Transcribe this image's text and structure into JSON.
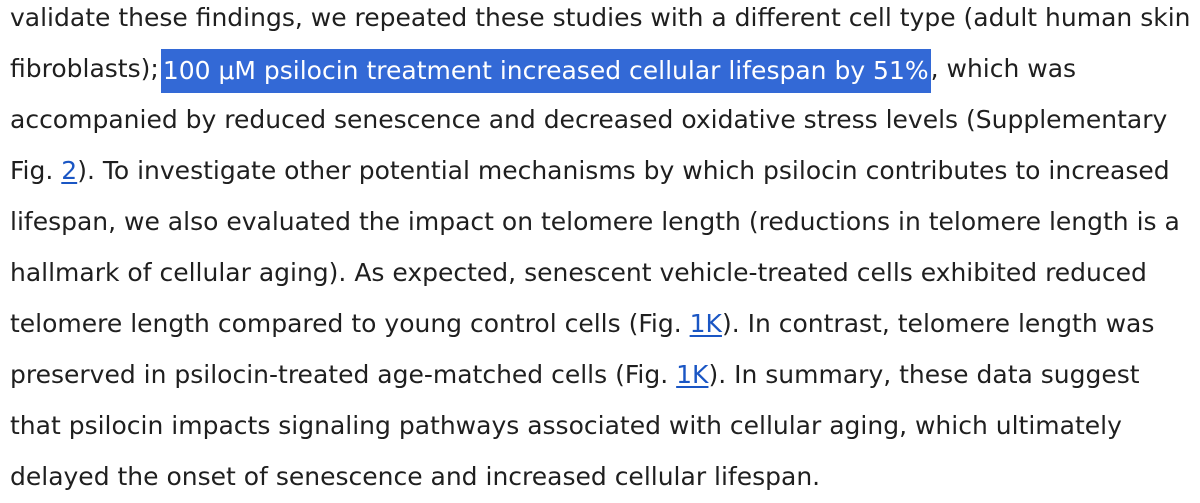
{
  "paragraph": {
    "line0": "validate these findings, we repeated these studies with a different cell type (adult human skin",
    "line1_before": "fibroblasts);",
    "line1_selected": "100 μM psilocin treatment increased cellular lifespan by 51%",
    "line1_after": ", which was",
    "line2": "accompanied by reduced senescence and decreased oxidative stress levels (Supplementary",
    "line3_before": "Fig. ",
    "line3_link": "2",
    "line3_after": "). To investigate other potential mechanisms by which psilocin contributes to increased",
    "line4": "lifespan, we also evaluated the impact on telomere length (reductions in telomere length is a",
    "line5": "hallmark of cellular aging). As expected, senescent vehicle-treated cells exhibited reduced",
    "line6_before": "telomere length compared to young control cells (Fig. ",
    "line6_link": "1K",
    "line6_after": "). In contrast, telomere length was",
    "line7_before": "preserved in psilocin-treated age-matched cells (Fig. ",
    "line7_link": "1K",
    "line7_after": "). In summary, these data suggest",
    "line8": "that psilocin impacts signaling pathways associated with cellular aging, which ultimately",
    "line9": "delayed the onset of senescence and increased cellular lifespan."
  },
  "colors": {
    "text": "#1f1f1f",
    "selection_background": "#3369d6",
    "selection_text": "#ffffff",
    "link": "#1a56c4"
  }
}
